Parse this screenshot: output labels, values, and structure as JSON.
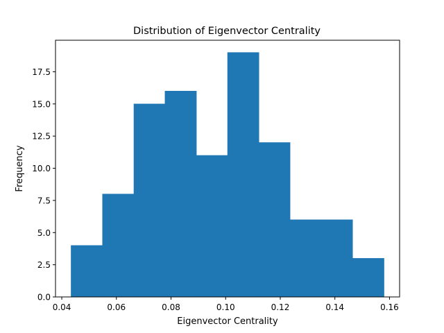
{
  "chart_data": {
    "type": "bar",
    "title": "Distribution of Eigenvector Centrality",
    "xlabel": "Eigenvector Centrality",
    "ylabel": "Frequency",
    "bins": [
      {
        "x0": 0.0434,
        "x1": 0.0549,
        "count": 4
      },
      {
        "x0": 0.0549,
        "x1": 0.0664,
        "count": 8
      },
      {
        "x0": 0.0664,
        "x1": 0.0778,
        "count": 15
      },
      {
        "x0": 0.0778,
        "x1": 0.0893,
        "count": 16
      },
      {
        "x0": 0.0893,
        "x1": 0.1007,
        "count": 11
      },
      {
        "x0": 0.1007,
        "x1": 0.1122,
        "count": 19
      },
      {
        "x0": 0.1122,
        "x1": 0.1236,
        "count": 12
      },
      {
        "x0": 0.1236,
        "x1": 0.1351,
        "count": 6
      },
      {
        "x0": 0.1351,
        "x1": 0.1465,
        "count": 6
      },
      {
        "x0": 0.1465,
        "x1": 0.158,
        "count": 3
      }
    ],
    "xlim": [
      0.0377,
      0.1637
    ],
    "ylim": [
      0,
      19.95
    ],
    "xticks": [
      0.04,
      0.06,
      0.08,
      0.1,
      0.12,
      0.14,
      0.16
    ],
    "xtick_labels": [
      "0.04",
      "0.06",
      "0.08",
      "0.10",
      "0.12",
      "0.14",
      "0.16"
    ],
    "yticks": [
      0,
      2.5,
      5,
      7.5,
      10,
      12.5,
      15,
      17.5
    ],
    "ytick_labels": [
      "0.0",
      "2.5",
      "5.0",
      "7.5",
      "10.0",
      "12.5",
      "15.0",
      "17.5"
    ],
    "bar_color": "#1f77b4",
    "grid": false,
    "legend": "none"
  }
}
